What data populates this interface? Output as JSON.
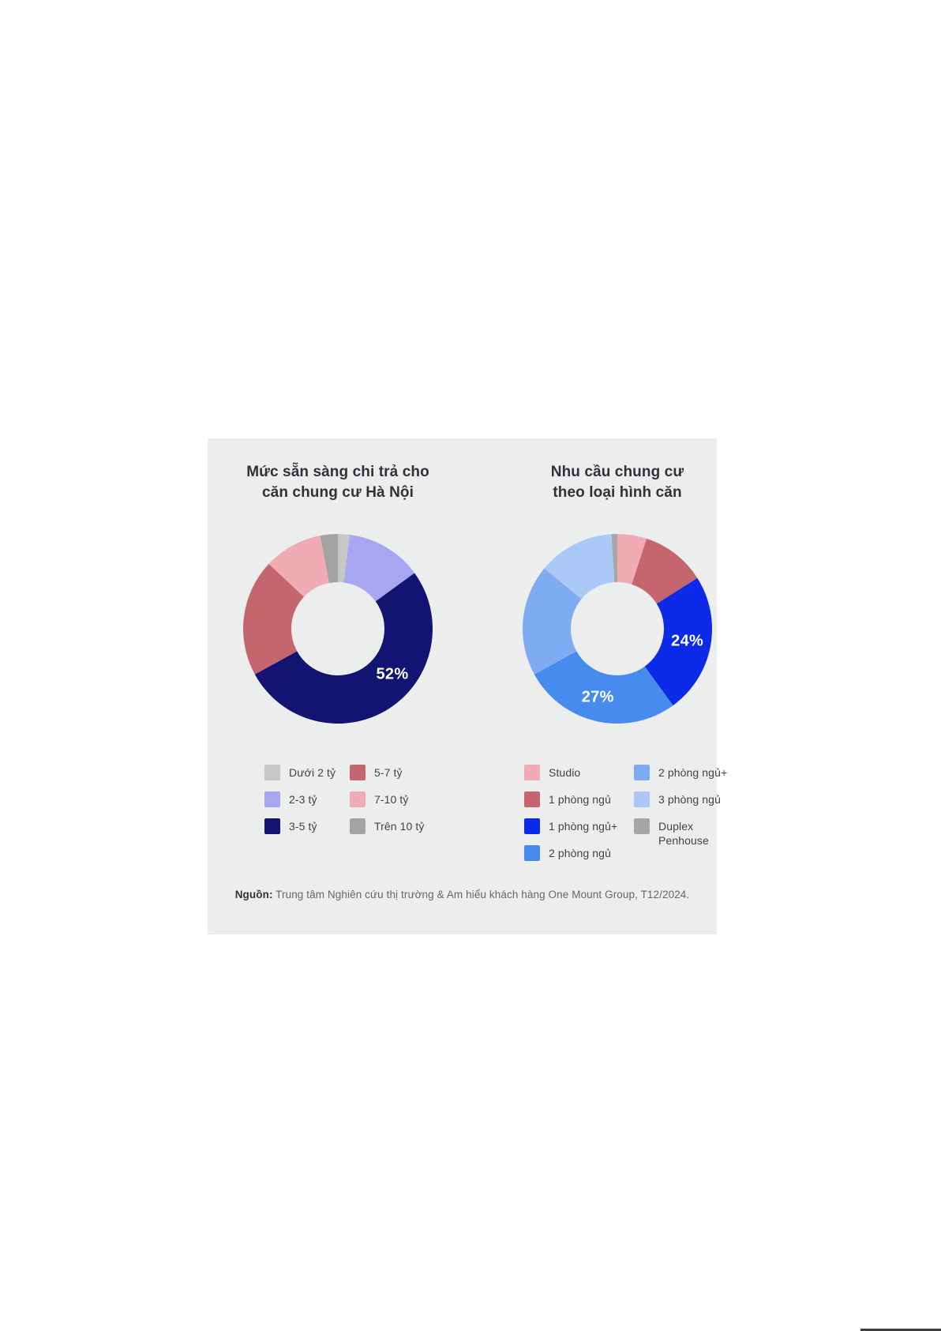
{
  "card": {
    "background": "#ECEEED"
  },
  "source": {
    "prefix": "Nguồn:",
    "text": " Trung tâm Nghiên cứu thị trường & Am hiểu khách hàng One Mount Group, T12/2024."
  },
  "chart_data": [
    {
      "type": "pie",
      "subtype": "donut",
      "title": "Mức sẵn sàng chi trả cho căn chung cư Hà Nội",
      "title_lines": [
        "Mức sẵn sàng chi trả cho",
        "căn chung cư Hà Nội"
      ],
      "unit": "percent",
      "start_angle_deg": 0,
      "direction": "clockwise",
      "legend_position": "bottom",
      "categories": [
        "Dưới 2 tỷ",
        "2-3 tỷ",
        "3-5 tỷ",
        "5-7 tỷ",
        "7-10 tỷ",
        "Trên 10 tỷ"
      ],
      "values": [
        2,
        13,
        52,
        20,
        10,
        3
      ],
      "colors": [
        "#C7C7C7",
        "#A6A7F0",
        "#111470",
        "#C5666E",
        "#F1ABB5",
        "#A3A3A3"
      ],
      "data_labels": [
        {
          "category": "3-5 tỷ",
          "text": "52%",
          "angle_deg": 130
        }
      ],
      "legend_columns": [
        [
          "Dưới 2 tỷ",
          "2-3 tỷ",
          "3-5 tỷ"
        ],
        [
          "5-7 tỷ",
          "7-10 tỷ",
          "Trên 10 tỷ"
        ]
      ],
      "legend_label_lines": {}
    },
    {
      "type": "pie",
      "subtype": "donut",
      "title": "Nhu cầu chung cư theo loại hình căn",
      "title_lines": [
        "Nhu cầu chung cư",
        "theo loại hình căn"
      ],
      "unit": "percent",
      "start_angle_deg": 0,
      "direction": "clockwise",
      "legend_position": "bottom",
      "categories": [
        "Studio",
        "1 phòng ngủ",
        "1 phòng ngủ+",
        "2 phòng ngủ",
        "2 phòng ngủ+",
        "3 phòng ngủ",
        "Duplex Penhouse"
      ],
      "values": [
        5,
        11,
        24,
        27,
        19,
        13,
        1
      ],
      "colors": [
        "#F1ABB5",
        "#C5666E",
        "#0B2BE8",
        "#478BEF",
        "#7FABF2",
        "#ABC9F7",
        "#A6A6A6"
      ],
      "data_labels": [
        {
          "category": "1 phòng ngủ+",
          "text": "24%",
          "angle_deg": 100
        },
        {
          "category": "2 phòng ngủ",
          "text": "27%",
          "angle_deg": 196
        }
      ],
      "legend_columns": [
        [
          "Studio",
          "1 phòng ngủ",
          "1 phòng ngủ+",
          "2 phòng ngủ"
        ],
        [
          "2 phòng ngủ+",
          "3 phòng ngủ",
          "Duplex Penhouse"
        ]
      ],
      "legend_label_lines": {
        "Duplex Penhouse": [
          "Duplex",
          "Penhouse"
        ]
      }
    }
  ]
}
